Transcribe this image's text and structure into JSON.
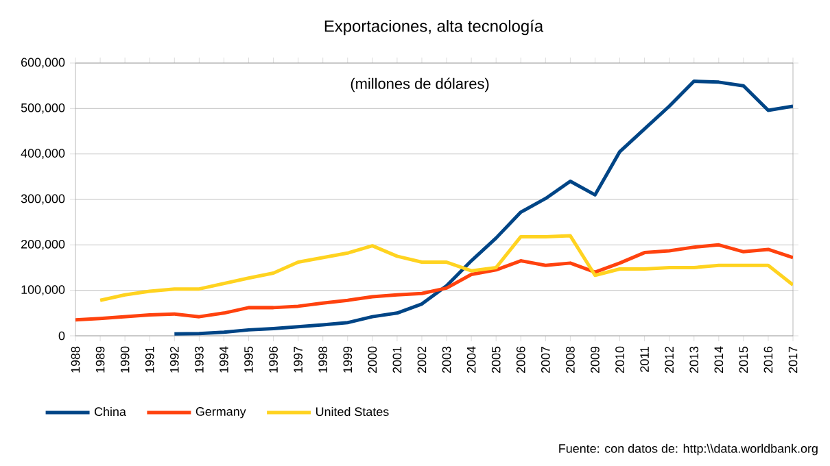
{
  "chart_data": {
    "type": "line",
    "title": "Exportaciones, alta tecnología",
    "subtitle": "(millones de dólares)",
    "categories": [
      "1988",
      "1989",
      "1990",
      "1991",
      "1992",
      "1993",
      "1994",
      "1995",
      "1996",
      "1997",
      "1998",
      "1999",
      "2000",
      "2001",
      "2002",
      "2003",
      "2004",
      "2005",
      "2006",
      "2007",
      "2008",
      "2009",
      "2010",
      "2011",
      "2012",
      "2013",
      "2014",
      "2015",
      "2016",
      "2017"
    ],
    "series": [
      {
        "name": "China",
        "color": "#004586",
        "values": [
          null,
          null,
          null,
          null,
          4000,
          5000,
          8000,
          13000,
          16000,
          20000,
          24000,
          29000,
          42000,
          50000,
          70000,
          110000,
          165000,
          215000,
          272000,
          302000,
          340000,
          310000,
          405000,
          455000,
          505000,
          560000,
          558000,
          550000,
          496000,
          505000
        ]
      },
      {
        "name": "Germany",
        "color": "#ff420e",
        "values": [
          35000,
          38000,
          42000,
          46000,
          48000,
          42000,
          50000,
          62000,
          62000,
          65000,
          72000,
          78000,
          86000,
          90000,
          93000,
          105000,
          135000,
          145000,
          165000,
          155000,
          160000,
          140000,
          160000,
          183000,
          187000,
          195000,
          200000,
          185000,
          190000,
          172000
        ]
      },
      {
        "name": "United States",
        "color": "#ffd320",
        "values": [
          null,
          78000,
          90000,
          98000,
          103000,
          103000,
          115000,
          127000,
          138000,
          162000,
          172000,
          182000,
          198000,
          175000,
          162000,
          162000,
          143000,
          150000,
          218000,
          218000,
          220000,
          133000,
          147000,
          147000,
          150000,
          150000,
          155000,
          155000,
          155000,
          112000
        ]
      }
    ],
    "ylim": [
      0,
      600000
    ],
    "yticks": [
      {
        "value": 0,
        "label": "0"
      },
      {
        "value": 100000,
        "label": "100,000"
      },
      {
        "value": 200000,
        "label": "200,000"
      },
      {
        "value": 300000,
        "label": "300,000"
      },
      {
        "value": 400000,
        "label": "400,000"
      },
      {
        "value": 500000,
        "label": "500,000"
      },
      {
        "value": 600000,
        "label": "600,000"
      }
    ],
    "grid": "y",
    "legend": "bottom",
    "annotations": [
      "Fuente: con datos de: http:\\\\data.worldbank.org"
    ]
  }
}
